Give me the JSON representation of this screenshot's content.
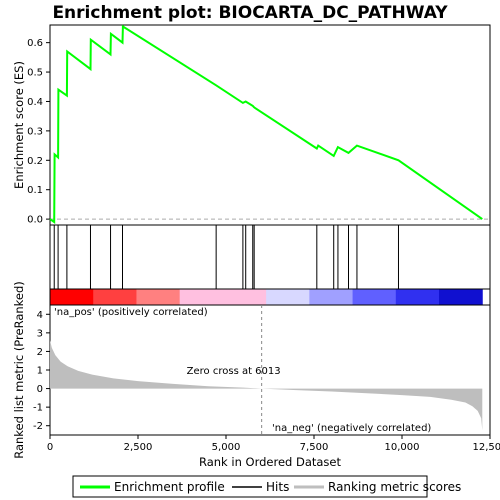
{
  "chart_data": {
    "type": "line",
    "title": "Enrichment plot: BIOCARTA_DC_PATHWAY",
    "xlabel": "Rank in Ordered Dataset",
    "top_ylabel": "Enrichment score (ES)",
    "bottom_ylabel": "Ranked list metric (PreRanked)",
    "xlim": [
      0,
      12500
    ],
    "x_ticks": [
      0,
      2500,
      5000,
      7500,
      10000,
      12500
    ],
    "x_tick_labels": [
      "0",
      "2,500",
      "5,000",
      "7,500",
      "10,000",
      "12,500"
    ],
    "es_ylim": [
      -0.02,
      0.66
    ],
    "es_ticks": [
      0.0,
      0.1,
      0.2,
      0.3,
      0.4,
      0.5,
      0.6
    ],
    "es_tick_labels": [
      "0.0",
      "0.1",
      "0.2",
      "0.3",
      "0.4",
      "0.5",
      "0.6"
    ],
    "metric_ylim": [
      -2.5,
      4.5
    ],
    "metric_ticks": [
      -2,
      -1,
      0,
      1,
      2,
      3,
      4
    ],
    "metric_tick_labels": [
      "-2",
      "-1",
      "0",
      "1",
      "2",
      "3",
      "4"
    ],
    "enrichment_profile": {
      "name": "Enrichment profile",
      "color": "#00ff00",
      "x": [
        0,
        120,
        130,
        230,
        240,
        480,
        490,
        1150,
        1160,
        1720,
        1730,
        2060,
        2070,
        4720,
        5480,
        5560,
        5760,
        5800,
        7580,
        7620,
        8060,
        8180,
        8480,
        8720,
        9900,
        12280
      ],
      "y": [
        0.0,
        -0.01,
        0.22,
        0.21,
        0.44,
        0.42,
        0.57,
        0.51,
        0.61,
        0.56,
        0.63,
        0.6,
        0.655,
        0.455,
        0.395,
        0.4,
        0.385,
        0.38,
        0.24,
        0.25,
        0.215,
        0.245,
        0.225,
        0.25,
        0.2,
        0.0
      ]
    },
    "hits": {
      "name": "Hits",
      "x": [
        120,
        230,
        480,
        1150,
        1720,
        2060,
        4720,
        5480,
        5560,
        5760,
        5800,
        7580,
        8060,
        8180,
        8480,
        8720,
        9900
      ]
    },
    "ranking_metric": {
      "name": "Ranking metric scores",
      "color": "#bebebe",
      "x": [
        0,
        50,
        150,
        300,
        500,
        800,
        1200,
        1800,
        2500,
        3500,
        4500,
        5500,
        6013,
        7000,
        8000,
        9000,
        10000,
        10800,
        11400,
        11800,
        12000,
        12150,
        12250,
        12280
      ],
      "y": [
        2.6,
        2.2,
        1.8,
        1.45,
        1.2,
        0.95,
        0.75,
        0.55,
        0.4,
        0.25,
        0.13,
        0.05,
        0.0,
        -0.08,
        -0.16,
        -0.25,
        -0.35,
        -0.45,
        -0.6,
        -0.75,
        -0.95,
        -1.2,
        -1.6,
        -2.25
      ]
    },
    "heatmap_colors": [
      "#ff0000",
      "#ff4040",
      "#ff8080",
      "#ffc0e0",
      "#ffc0e0",
      "#d8d8ff",
      "#a0a0ff",
      "#6060ff",
      "#3030f0",
      "#1010d0"
    ],
    "zero_cross": {
      "x": 6013,
      "label": "Zero cross at 6013"
    },
    "annotations": {
      "pos": "'na_pos' (positively correlated)",
      "neg": "'na_neg' (negatively correlated)",
      "pos_color": "#cc0000",
      "neg_color": "#0000cc"
    },
    "legend": {
      "items": [
        {
          "label": "Enrichment profile",
          "color": "#00ff00"
        },
        {
          "label": "Hits",
          "color": "#000000"
        },
        {
          "label": "Ranking metric scores",
          "color": "#bebebe"
        }
      ]
    }
  }
}
